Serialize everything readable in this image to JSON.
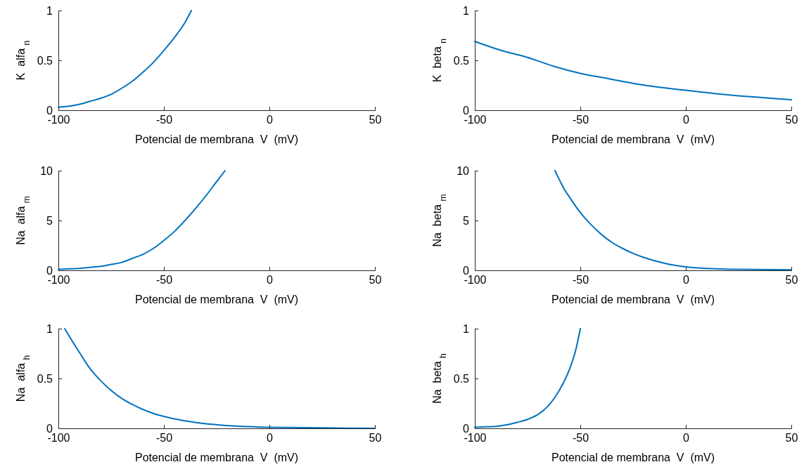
{
  "chart_data": [
    {
      "type": "line",
      "xlabel": "Potencial de membrana  V  (mV)",
      "ylabel": "K  alfa $_{n}$",
      "xlim": [
        -100,
        50
      ],
      "ylim": [
        0,
        1
      ],
      "xticks": [
        -100,
        -50,
        0,
        50
      ],
      "yticks": [
        0,
        0.5,
        1
      ],
      "grid": false,
      "marker": "none",
      "line_style": "solid",
      "series": [
        {
          "color": "#0072bd",
          "x": [
            -100,
            -95,
            -90,
            -85,
            -80,
            -75,
            -70,
            -65,
            -60,
            -55,
            -50,
            -45,
            -40,
            -37
          ],
          "values": [
            0.03,
            0.04,
            0.06,
            0.09,
            0.12,
            0.16,
            0.22,
            0.29,
            0.38,
            0.48,
            0.6,
            0.73,
            0.88,
            1.0
          ]
        }
      ]
    },
    {
      "type": "line",
      "xlabel": "Potencial de membrana  V  (mV)",
      "ylabel": "K  beta $_{n}$",
      "xlim": [
        -100,
        50
      ],
      "ylim": [
        0,
        1
      ],
      "xticks": [
        -100,
        -50,
        0,
        50
      ],
      "yticks": [
        0,
        0.5,
        1
      ],
      "grid": false,
      "marker": "none",
      "line_style": "solid",
      "series": [
        {
          "color": "#0072bd",
          "x": [
            -100,
            -87.5,
            -75,
            -62.5,
            -50,
            -37.5,
            -25,
            -12.5,
            0,
            12.5,
            25,
            37.5,
            50
          ],
          "values": [
            0.69,
            0.6,
            0.53,
            0.44,
            0.37,
            0.32,
            0.27,
            0.23,
            0.2,
            0.17,
            0.145,
            0.125,
            0.105
          ]
        }
      ]
    },
    {
      "type": "line",
      "xlabel": "Potencial de membrana  V  (mV)",
      "ylabel": "Na  alfa $_{m}$",
      "xlim": [
        -100,
        50
      ],
      "ylim": [
        0,
        10
      ],
      "xticks": [
        -100,
        -50,
        0,
        50
      ],
      "yticks": [
        0,
        5,
        10
      ],
      "grid": false,
      "marker": "none",
      "line_style": "solid",
      "series": [
        {
          "color": "#0072bd",
          "x": [
            -100,
            -95,
            -90,
            -85,
            -80,
            -75,
            -70,
            -65,
            -60,
            -55,
            -50,
            -45,
            -40,
            -35,
            -30,
            -25,
            -21
          ],
          "values": [
            0.1,
            0.15,
            0.2,
            0.3,
            0.4,
            0.6,
            0.8,
            1.2,
            1.6,
            2.2,
            3.0,
            3.9,
            5.0,
            6.2,
            7.5,
            8.9,
            10
          ]
        }
      ]
    },
    {
      "type": "line",
      "xlabel": "Potencial de membrana  V  (mV)",
      "ylabel": "Na  beta $_{m}$",
      "xlim": [
        -100,
        50
      ],
      "ylim": [
        0,
        10
      ],
      "xticks": [
        -100,
        -50,
        0,
        50
      ],
      "yticks": [
        0,
        5,
        10
      ],
      "grid": false,
      "marker": "none",
      "line_style": "solid",
      "series": [
        {
          "color": "#0072bd",
          "x": [
            -62,
            -58,
            -55,
            -50,
            -45,
            -40,
            -35,
            -30,
            -25,
            -20,
            -10,
            0,
            10,
            25,
            50
          ],
          "values": [
            10,
            8.3,
            7.3,
            5.8,
            4.6,
            3.6,
            2.8,
            2.2,
            1.7,
            1.3,
            0.7,
            0.35,
            0.2,
            0.1,
            0.05
          ]
        }
      ]
    },
    {
      "type": "line",
      "xlabel": "Potencial de membrana  V  (mV)",
      "ylabel": "Na  alfa $_{h}$",
      "xlim": [
        -100,
        50
      ],
      "ylim": [
        0,
        1
      ],
      "xticks": [
        -100,
        -50,
        0,
        50
      ],
      "yticks": [
        0,
        0.5,
        1
      ],
      "grid": false,
      "marker": "none",
      "line_style": "solid",
      "series": [
        {
          "color": "#0072bd",
          "x": [
            -97,
            -93,
            -90,
            -85,
            -80,
            -75,
            -70,
            -65,
            -60,
            -55,
            -50,
            -40,
            -30,
            -20,
            -10,
            0,
            25,
            50
          ],
          "values": [
            1.0,
            0.86,
            0.76,
            0.6,
            0.48,
            0.38,
            0.3,
            0.24,
            0.19,
            0.15,
            0.12,
            0.075,
            0.045,
            0.028,
            0.017,
            0.01,
            0.005,
            0.0
          ]
        }
      ]
    },
    {
      "type": "line",
      "xlabel": "Potencial de membrana  V  (mV)",
      "ylabel": "Na  beta $_{h}$",
      "xlim": [
        -100,
        50
      ],
      "ylim": [
        0,
        1
      ],
      "xticks": [
        -100,
        -50,
        0,
        50
      ],
      "yticks": [
        0,
        0.5,
        1
      ],
      "grid": false,
      "marker": "none",
      "line_style": "solid",
      "series": [
        {
          "color": "#0072bd",
          "x": [
            -100,
            -95,
            -90,
            -85,
            -80,
            -75,
            -70,
            -65,
            -60,
            -57,
            -55,
            -52,
            -50
          ],
          "values": [
            0.01,
            0.015,
            0.02,
            0.035,
            0.06,
            0.09,
            0.14,
            0.23,
            0.38,
            0.5,
            0.6,
            0.8,
            1.0
          ]
        }
      ]
    }
  ]
}
